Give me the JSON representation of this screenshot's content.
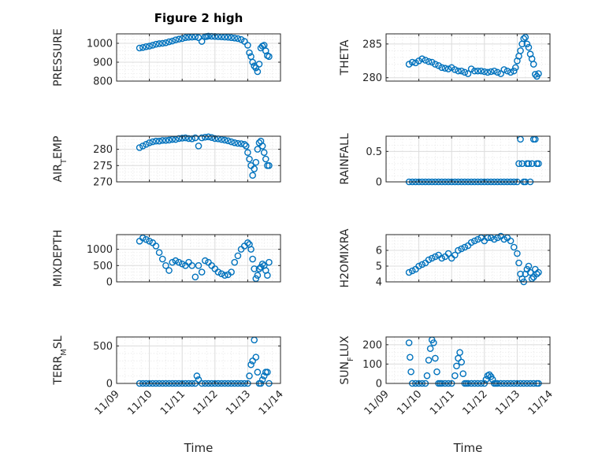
{
  "figure": {
    "title": "Figure 2 high",
    "xlabel": "Time",
    "xticks": [
      "11/09",
      "11/10",
      "11/11",
      "11/12",
      "11/13",
      "11/14"
    ]
  },
  "chart_data": [
    {
      "type": "scatter",
      "ylabel": "PRESSURE",
      "ylim": [
        800,
        1050
      ],
      "yticks": [
        800,
        900,
        1000
      ],
      "grid": true,
      "x": [
        0.7,
        0.8,
        0.9,
        1.0,
        1.1,
        1.2,
        1.3,
        1.4,
        1.5,
        1.6,
        1.7,
        1.8,
        1.9,
        2.0,
        2.1,
        2.2,
        2.3,
        2.4,
        2.5,
        2.6,
        2.7,
        2.75,
        2.8,
        2.9,
        3.0,
        3.1,
        3.2,
        3.3,
        3.4,
        3.5,
        3.6,
        3.7,
        3.8,
        3.9,
        4.0,
        4.05,
        4.1,
        4.15,
        4.2,
        4.25,
        4.3,
        4.35,
        4.4,
        4.45,
        4.5,
        4.55,
        4.6,
        4.65
      ],
      "y": [
        975,
        978,
        982,
        985,
        990,
        995,
        998,
        1000,
        1003,
        1008,
        1012,
        1018,
        1022,
        1025,
        1030,
        1032,
        1033,
        1034,
        1030,
        1010,
        1035,
        1036,
        1038,
        1037,
        1036,
        1035,
        1034,
        1033,
        1032,
        1030,
        1028,
        1025,
        1020,
        1010,
        990,
        950,
        930,
        900,
        880,
        870,
        850,
        890,
        975,
        985,
        990,
        960,
        935,
        930
      ]
    },
    {
      "type": "scatter",
      "ylabel": "THETA",
      "ylim": [
        279.5,
        286.5
      ],
      "yticks": [
        280,
        285
      ],
      "grid": true,
      "x": [
        0.7,
        0.8,
        0.9,
        1.0,
        1.1,
        1.2,
        1.3,
        1.4,
        1.5,
        1.6,
        1.7,
        1.8,
        1.9,
        2.0,
        2.1,
        2.2,
        2.3,
        2.4,
        2.5,
        2.6,
        2.7,
        2.8,
        2.9,
        3.0,
        3.1,
        3.2,
        3.3,
        3.4,
        3.5,
        3.6,
        3.7,
        3.8,
        3.9,
        3.95,
        4.0,
        4.05,
        4.1,
        4.15,
        4.2,
        4.25,
        4.3,
        4.35,
        4.4,
        4.45,
        4.5,
        4.55,
        4.6,
        4.65
      ],
      "y": [
        282.0,
        282.3,
        282.2,
        282.5,
        282.8,
        282.6,
        282.4,
        282.3,
        282.0,
        281.8,
        281.5,
        281.4,
        281.3,
        281.5,
        281.2,
        281.0,
        281.0,
        280.8,
        280.6,
        281.3,
        281.0,
        281.0,
        281.0,
        280.9,
        280.8,
        280.9,
        281.0,
        280.8,
        280.6,
        281.2,
        281.0,
        280.8,
        281.0,
        281.5,
        282.5,
        283.2,
        284.0,
        285.0,
        285.8,
        286.0,
        285.0,
        284.5,
        283.5,
        282.8,
        282.0,
        280.5,
        280.2,
        280.6
      ]
    },
    {
      "type": "scatter",
      "ylabel": "AIR_TEMP",
      "ylim": [
        270,
        284
      ],
      "yticks": [
        270,
        275,
        280
      ],
      "grid": true,
      "x": [
        0.7,
        0.8,
        0.9,
        1.0,
        1.1,
        1.2,
        1.3,
        1.4,
        1.5,
        1.6,
        1.7,
        1.8,
        1.9,
        2.0,
        2.1,
        2.2,
        2.3,
        2.4,
        2.5,
        2.6,
        2.7,
        2.8,
        2.9,
        3.0,
        3.1,
        3.2,
        3.3,
        3.4,
        3.5,
        3.6,
        3.7,
        3.8,
        3.9,
        3.95,
        4.0,
        4.05,
        4.1,
        4.15,
        4.2,
        4.25,
        4.3,
        4.35,
        4.4,
        4.45,
        4.5,
        4.55,
        4.6,
        4.65
      ],
      "y": [
        280.5,
        281.0,
        281.5,
        282.0,
        282.3,
        282.5,
        282.5,
        282.7,
        282.7,
        282.8,
        283.0,
        283.0,
        283.3,
        283.4,
        283.5,
        283.3,
        283.2,
        283.5,
        281.0,
        283.5,
        283.7,
        283.8,
        283.6,
        283.3,
        283.2,
        283.0,
        282.8,
        282.6,
        282.3,
        282.0,
        281.8,
        281.7,
        281.5,
        281.0,
        279.0,
        277.0,
        275.0,
        272.0,
        274.0,
        276.0,
        280.0,
        282.0,
        282.5,
        281.0,
        279.0,
        277.0,
        275.0,
        275.0
      ]
    },
    {
      "type": "scatter",
      "ylabel": "RAINFALL",
      "ylim": [
        0,
        0.75
      ],
      "yticks": [
        0,
        0.5
      ],
      "grid": true,
      "x": [
        0.7,
        0.8,
        0.9,
        1.0,
        1.1,
        1.2,
        1.3,
        1.4,
        1.5,
        1.6,
        1.7,
        1.8,
        1.9,
        2.0,
        2.1,
        2.2,
        2.3,
        2.4,
        2.5,
        2.6,
        2.7,
        2.8,
        2.9,
        3.0,
        3.1,
        3.2,
        3.3,
        3.4,
        3.5,
        3.6,
        3.7,
        3.8,
        3.9,
        4.0,
        4.05,
        4.1,
        4.15,
        4.2,
        4.25,
        4.3,
        4.35,
        4.4,
        4.45,
        4.5,
        4.55,
        4.6,
        4.65
      ],
      "y": [
        0,
        0,
        0,
        0,
        0,
        0,
        0,
        0,
        0,
        0,
        0,
        0,
        0,
        0,
        0,
        0,
        0,
        0,
        0,
        0,
        0,
        0,
        0,
        0,
        0,
        0,
        0,
        0,
        0,
        0,
        0,
        0,
        0,
        0,
        0.3,
        0.7,
        0.3,
        0,
        0,
        0.3,
        0.3,
        0,
        0.3,
        0.7,
        0.7,
        0.3,
        0.3
      ]
    },
    {
      "type": "scatter",
      "ylabel": "MIXDEPTH",
      "ylim": [
        0,
        1450
      ],
      "yticks": [
        0,
        500,
        1000
      ],
      "grid": true,
      "x": [
        0.7,
        0.8,
        0.9,
        1.0,
        1.1,
        1.2,
        1.3,
        1.4,
        1.5,
        1.6,
        1.7,
        1.8,
        1.9,
        2.0,
        2.1,
        2.2,
        2.3,
        2.4,
        2.5,
        2.6,
        2.7,
        2.8,
        2.9,
        3.0,
        3.1,
        3.2,
        3.3,
        3.4,
        3.5,
        3.6,
        3.7,
        3.8,
        3.9,
        4.0,
        4.05,
        4.1,
        4.15,
        4.2,
        4.25,
        4.3,
        4.35,
        4.4,
        4.45,
        4.5,
        4.55,
        4.6,
        4.65
      ],
      "y": [
        1250,
        1350,
        1300,
        1250,
        1200,
        1100,
        900,
        700,
        500,
        350,
        600,
        650,
        600,
        550,
        500,
        600,
        500,
        150,
        500,
        300,
        650,
        600,
        500,
        400,
        300,
        250,
        200,
        220,
        300,
        600,
        800,
        1000,
        1100,
        1200,
        1150,
        1000,
        700,
        400,
        100,
        200,
        400,
        450,
        550,
        500,
        350,
        200,
        600
      ]
    },
    {
      "type": "scatter",
      "ylabel": "H2OMIXRA",
      "ylim": [
        4,
        7
      ],
      "yticks": [
        4,
        5,
        6
      ],
      "grid": true,
      "x": [
        0.7,
        0.8,
        0.9,
        1.0,
        1.1,
        1.2,
        1.3,
        1.4,
        1.5,
        1.6,
        1.7,
        1.8,
        1.9,
        2.0,
        2.1,
        2.2,
        2.3,
        2.4,
        2.5,
        2.6,
        2.7,
        2.8,
        2.9,
        3.0,
        3.1,
        3.2,
        3.3,
        3.4,
        3.5,
        3.6,
        3.7,
        3.8,
        3.9,
        4.0,
        4.05,
        4.1,
        4.15,
        4.2,
        4.25,
        4.3,
        4.35,
        4.4,
        4.45,
        4.5,
        4.55,
        4.6,
        4.65
      ],
      "y": [
        4.6,
        4.7,
        4.8,
        5.0,
        5.1,
        5.2,
        5.4,
        5.5,
        5.6,
        5.7,
        5.5,
        5.6,
        5.8,
        5.5,
        5.7,
        6.0,
        6.1,
        6.2,
        6.3,
        6.5,
        6.6,
        6.7,
        6.8,
        6.6,
        6.8,
        6.8,
        6.7,
        6.8,
        6.9,
        6.7,
        6.8,
        6.6,
        6.2,
        5.8,
        5.2,
        4.5,
        4.2,
        4.0,
        4.5,
        4.8,
        5.0,
        4.6,
        4.2,
        4.3,
        4.8,
        4.5,
        4.6
      ]
    },
    {
      "type": "scatter",
      "ylabel": "TERR_MSL",
      "ylim": [
        0,
        620
      ],
      "yticks": [
        0,
        500
      ],
      "grid": true,
      "x": [
        0.7,
        0.8,
        0.9,
        1.0,
        1.1,
        1.2,
        1.3,
        1.4,
        1.5,
        1.6,
        1.7,
        1.8,
        1.9,
        2.0,
        2.1,
        2.2,
        2.3,
        2.4,
        2.45,
        2.5,
        2.6,
        2.7,
        2.8,
        2.9,
        3.0,
        3.1,
        3.2,
        3.3,
        3.4,
        3.5,
        3.6,
        3.7,
        3.8,
        3.9,
        4.0,
        4.05,
        4.1,
        4.15,
        4.2,
        4.25,
        4.3,
        4.35,
        4.4,
        4.45,
        4.5,
        4.55,
        4.6,
        4.65
      ],
      "y": [
        0,
        0,
        0,
        0,
        0,
        0,
        0,
        0,
        0,
        0,
        0,
        0,
        0,
        0,
        0,
        0,
        0,
        0,
        100,
        50,
        0,
        0,
        0,
        0,
        0,
        0,
        0,
        0,
        0,
        0,
        0,
        0,
        0,
        0,
        0,
        100,
        250,
        300,
        580,
        350,
        150,
        0,
        0,
        50,
        100,
        150,
        150,
        0
      ]
    },
    {
      "type": "scatter",
      "ylabel": "SUN_FLUX",
      "ylim": [
        0,
        240
      ],
      "yticks": [
        0,
        100,
        200
      ],
      "grid": true,
      "x": [
        0.7,
        0.73,
        0.76,
        0.8,
        0.9,
        1.0,
        1.1,
        1.2,
        1.25,
        1.3,
        1.35,
        1.4,
        1.45,
        1.5,
        1.55,
        1.6,
        1.65,
        1.7,
        1.8,
        1.9,
        2.0,
        2.1,
        2.15,
        2.2,
        2.25,
        2.3,
        2.35,
        2.4,
        2.45,
        2.5,
        2.6,
        2.7,
        2.8,
        2.9,
        3.0,
        3.05,
        3.1,
        3.15,
        3.2,
        3.25,
        3.3,
        3.35,
        3.4,
        3.5,
        3.6,
        3.7,
        3.8,
        3.9,
        4.0,
        4.1,
        4.2,
        4.3,
        4.4,
        4.5,
        4.6,
        4.65
      ],
      "y": [
        210,
        135,
        60,
        0,
        0,
        0,
        0,
        0,
        40,
        120,
        180,
        225,
        210,
        130,
        60,
        0,
        0,
        0,
        0,
        0,
        0,
        40,
        90,
        130,
        160,
        110,
        50,
        0,
        0,
        0,
        0,
        0,
        0,
        0,
        0,
        20,
        40,
        45,
        35,
        20,
        0,
        0,
        0,
        0,
        0,
        0,
        0,
        0,
        0,
        0,
        0,
        0,
        0,
        0,
        0,
        0
      ]
    }
  ]
}
